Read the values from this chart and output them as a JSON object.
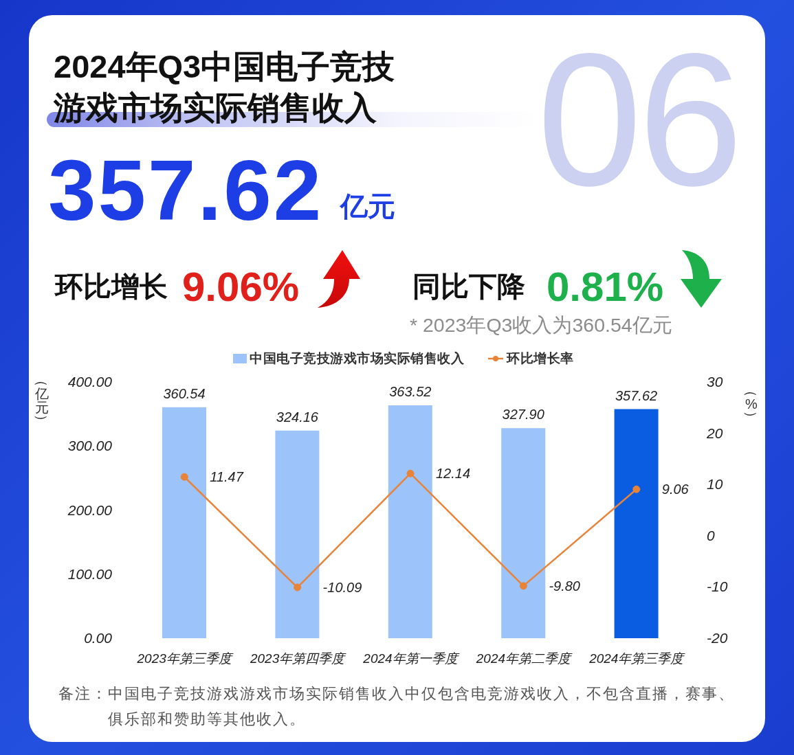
{
  "chart_data": {
    "type": "bar",
    "title": "2024年Q3中国电子竞技游戏市场实际销售收入",
    "ylabel": "（亿元）",
    "y2label": "（%）",
    "categories": [
      "2023年第三季度",
      "2023年第四季度",
      "2024年第一季度",
      "2024年第二季度",
      "2024年第三季度"
    ],
    "series": [
      {
        "name": "中国电子竞技游戏市场实际销售收入",
        "color": "#9cc3fa",
        "colors": [
          "#9cc3fa",
          "#9cc3fa",
          "#9cc3fa",
          "#9cc3fa",
          "#0a5ce0"
        ],
        "values": [
          360.54,
          324.16,
          363.52,
          327.9,
          357.62
        ],
        "value_labels": [
          "360.54",
          "324.16",
          "363.52",
          "327.90",
          "357.62"
        ]
      },
      {
        "name": "环比增长率",
        "type": "line",
        "axis": "y2",
        "color": "#e8843a",
        "values": [
          11.47,
          -10.09,
          12.14,
          -9.8,
          9.06
        ],
        "value_labels": [
          "11.47",
          "-10.09",
          "12.14",
          "-9.80",
          "9.06"
        ]
      }
    ],
    "ylim": [
      0,
      400
    ],
    "yticks": [
      {
        "value": 0,
        "label": "0.00"
      },
      {
        "value": 100,
        "label": "100.00"
      },
      {
        "value": 200,
        "label": "200.00"
      },
      {
        "value": 300,
        "label": "300.00"
      },
      {
        "value": 400,
        "label": "400.00"
      }
    ],
    "y2lim": [
      -20,
      30
    ],
    "y2ticks": [
      -20,
      -10,
      0,
      10,
      20,
      30
    ],
    "legend": "top",
    "marker": "circle",
    "annotations": [
      "06",
      "357.62",
      "亿元",
      "环比增长",
      "9.06%",
      "同比下降",
      "0.81%",
      "* 2023年Q3收入为360.54亿元",
      "备注：中国电子竞技游戏游戏市场实际销售收入中仅包含电竞游戏收入，不包含直播，赛事、俱乐部和赞助等其他收入。"
    ]
  }
}
